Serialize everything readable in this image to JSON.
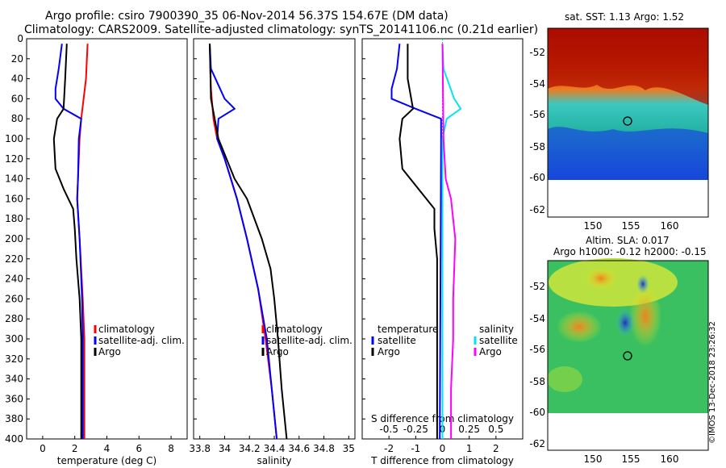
{
  "header": {
    "line1": "Argo profile: csiro 7900390_35 06-Nov-2014 56.37S 154.67E (DM data)",
    "line2": "Climatology: CARS2009. Satellite-adjusted climatology: synTS_20141106.nc (0.21d earlier)"
  },
  "colors": {
    "climatology": "#ff0000",
    "satellite": "#0000ff",
    "argo": "#000000",
    "sal_satellite": "#00e5ee",
    "sal_climatology": "#ff00ff"
  },
  "chart_data": [
    {
      "id": "temperature",
      "type": "line",
      "xlabel": "temperature (deg C)",
      "ylabel": "",
      "xlim": [
        -1,
        9
      ],
      "ylim": [
        400,
        0
      ],
      "xticks": [
        0,
        2,
        4,
        6,
        8
      ],
      "xticklabels": [
        "0",
        "2",
        "4",
        "6",
        "8"
      ],
      "yticks": [
        0,
        20,
        40,
        60,
        80,
        100,
        120,
        140,
        160,
        180,
        200,
        220,
        240,
        260,
        280,
        300,
        320,
        340,
        360,
        380,
        400
      ],
      "legend": [
        "climatology",
        "satellite-adj. clim.",
        "Argo"
      ],
      "series": [
        {
          "name": "climatology",
          "color": "#ff0000",
          "depth": [
            5,
            40,
            80,
            100,
            140,
            160,
            200,
            260,
            300,
            340,
            400
          ],
          "values": [
            2.8,
            2.7,
            2.4,
            2.3,
            2.2,
            2.15,
            2.3,
            2.5,
            2.6,
            2.6,
            2.6
          ]
        },
        {
          "name": "satellite-adj. clim.",
          "color": "#0000ff",
          "depth": [
            5,
            30,
            50,
            60,
            70,
            80,
            100,
            140,
            160,
            200,
            260,
            300,
            340,
            400
          ],
          "values": [
            1.2,
            1.0,
            0.8,
            0.8,
            1.3,
            2.4,
            2.25,
            2.2,
            2.15,
            2.3,
            2.45,
            2.5,
            2.5,
            2.5
          ]
        },
        {
          "name": "Argo",
          "color": "#000000",
          "depth": [
            5,
            40,
            70,
            80,
            100,
            130,
            150,
            170,
            190,
            220,
            260,
            300,
            340,
            400
          ],
          "values": [
            1.5,
            1.4,
            1.3,
            0.9,
            0.7,
            0.8,
            1.3,
            1.9,
            2.0,
            2.1,
            2.3,
            2.4,
            2.4,
            2.4
          ]
        }
      ]
    },
    {
      "id": "salinity",
      "type": "line",
      "xlabel": "salinity",
      "ylabel": "",
      "xlim": [
        33.75,
        35.05
      ],
      "ylim": [
        400,
        0
      ],
      "xticks": [
        33.8,
        34,
        34.2,
        34.4,
        34.6,
        34.8,
        35
      ],
      "xticklabels": [
        "33.8",
        "34",
        "34.2",
        "34.4",
        "34.6",
        "34.8",
        "35"
      ],
      "yticks": [
        0,
        20,
        40,
        60,
        80,
        100,
        120,
        140,
        160,
        180,
        200,
        220,
        240,
        260,
        280,
        300,
        320,
        340,
        360,
        380,
        400
      ],
      "legend": [
        "climatology",
        "satellite-adj. clim.",
        "Argo"
      ],
      "series": [
        {
          "name": "climatology",
          "color": "#ff0000",
          "depth": [
            5,
            50,
            80,
            100,
            120,
            140,
            160,
            200,
            250,
            300,
            350,
            400
          ],
          "values": [
            33.88,
            33.89,
            33.91,
            33.94,
            34.0,
            34.05,
            34.1,
            34.18,
            34.27,
            34.33,
            34.38,
            34.42
          ]
        },
        {
          "name": "satellite-adj. clim.",
          "color": "#0000ff",
          "depth": [
            5,
            30,
            60,
            70,
            80,
            100,
            120,
            140,
            160,
            200,
            250,
            300,
            350,
            400
          ],
          "values": [
            33.88,
            33.89,
            34.0,
            34.08,
            33.95,
            33.94,
            34.0,
            34.05,
            34.1,
            34.18,
            34.27,
            34.34,
            34.38,
            34.42
          ]
        },
        {
          "name": "Argo",
          "color": "#000000",
          "depth": [
            5,
            60,
            100,
            140,
            160,
            200,
            230,
            260,
            300,
            350,
            400
          ],
          "values": [
            33.88,
            33.89,
            33.95,
            34.08,
            34.18,
            34.3,
            34.37,
            34.4,
            34.43,
            34.46,
            34.5
          ]
        }
      ]
    },
    {
      "id": "difference",
      "type": "line",
      "xlabel": "T difference from climatology",
      "xlabel_top": "S difference from climatology",
      "xlim": [
        -3,
        3
      ],
      "ylim": [
        400,
        0
      ],
      "xticks": [
        -2,
        -1,
        0,
        1,
        2
      ],
      "xticklabels": [
        "-2",
        "-1",
        "0",
        "1",
        "2"
      ],
      "sticks": [
        -0.5,
        -0.25,
        0,
        0.25,
        0.5
      ],
      "sticklabels": [
        "-0.5",
        "-0.25",
        "0",
        "0.25",
        "0.5"
      ],
      "yticks": [
        0,
        20,
        40,
        60,
        80,
        100,
        120,
        140,
        160,
        180,
        200,
        220,
        240,
        260,
        280,
        300,
        320,
        340,
        360,
        380,
        400
      ],
      "legend_temperature": [
        "temperature",
        "satellite",
        "Argo"
      ],
      "legend_salinity": [
        "salinity",
        "satellite",
        "Argo"
      ],
      "series": [
        {
          "name": "temperature satellite",
          "color": "#0000ff",
          "depth": [
            5,
            30,
            50,
            60,
            70,
            80,
            100,
            400
          ],
          "values": [
            -1.6,
            -1.7,
            -1.9,
            -1.9,
            -1.0,
            -0.05,
            -0.05,
            -0.1
          ]
        },
        {
          "name": "temperature Argo",
          "color": "#000000",
          "depth": [
            5,
            40,
            70,
            80,
            100,
            130,
            150,
            170,
            190,
            220,
            260,
            400
          ],
          "values": [
            -1.3,
            -1.3,
            -1.1,
            -1.5,
            -1.6,
            -1.5,
            -0.9,
            -0.3,
            -0.3,
            -0.2,
            -0.2,
            -0.2
          ]
        },
        {
          "name": "salinity satellite",
          "color": "#00e5ee",
          "depth": [
            5,
            30,
            60,
            70,
            80,
            100,
            400
          ],
          "values": [
            0.0,
            0.01,
            0.11,
            0.17,
            0.04,
            0.0,
            0.0
          ]
        },
        {
          "name": "salinity Argo",
          "color": "#ff00ff",
          "depth": [
            5,
            100,
            140,
            160,
            200,
            230,
            260,
            300,
            350,
            400
          ],
          "values": [
            0.0,
            0.01,
            0.03,
            0.08,
            0.12,
            0.11,
            0.1,
            0.1,
            0.08,
            0.08
          ]
        }
      ]
    }
  ],
  "maps": {
    "sst": {
      "title": "sat. SST: 1.13 Argo: 1.52",
      "lon_ticks": [
        "150",
        "155",
        "160"
      ],
      "lat_ticks": [
        "-52",
        "-54",
        "-56",
        "-58",
        "-60",
        "-62"
      ],
      "marker_lon": 154.67,
      "marker_lat": -56.37
    },
    "sla": {
      "title_line1": "Altim. SLA: 0.017",
      "title_line2": "Argo h1000: -0.12 h2000: -0.15",
      "lon_ticks": [
        "150",
        "155",
        "160"
      ],
      "lat_ticks": [
        "-52",
        "-54",
        "-56",
        "-58",
        "-60",
        "-62"
      ],
      "marker_lon": 154.67,
      "marker_lat": -56.37
    }
  },
  "credit": "©IMOS 13-Dec-2018 23:26:32"
}
